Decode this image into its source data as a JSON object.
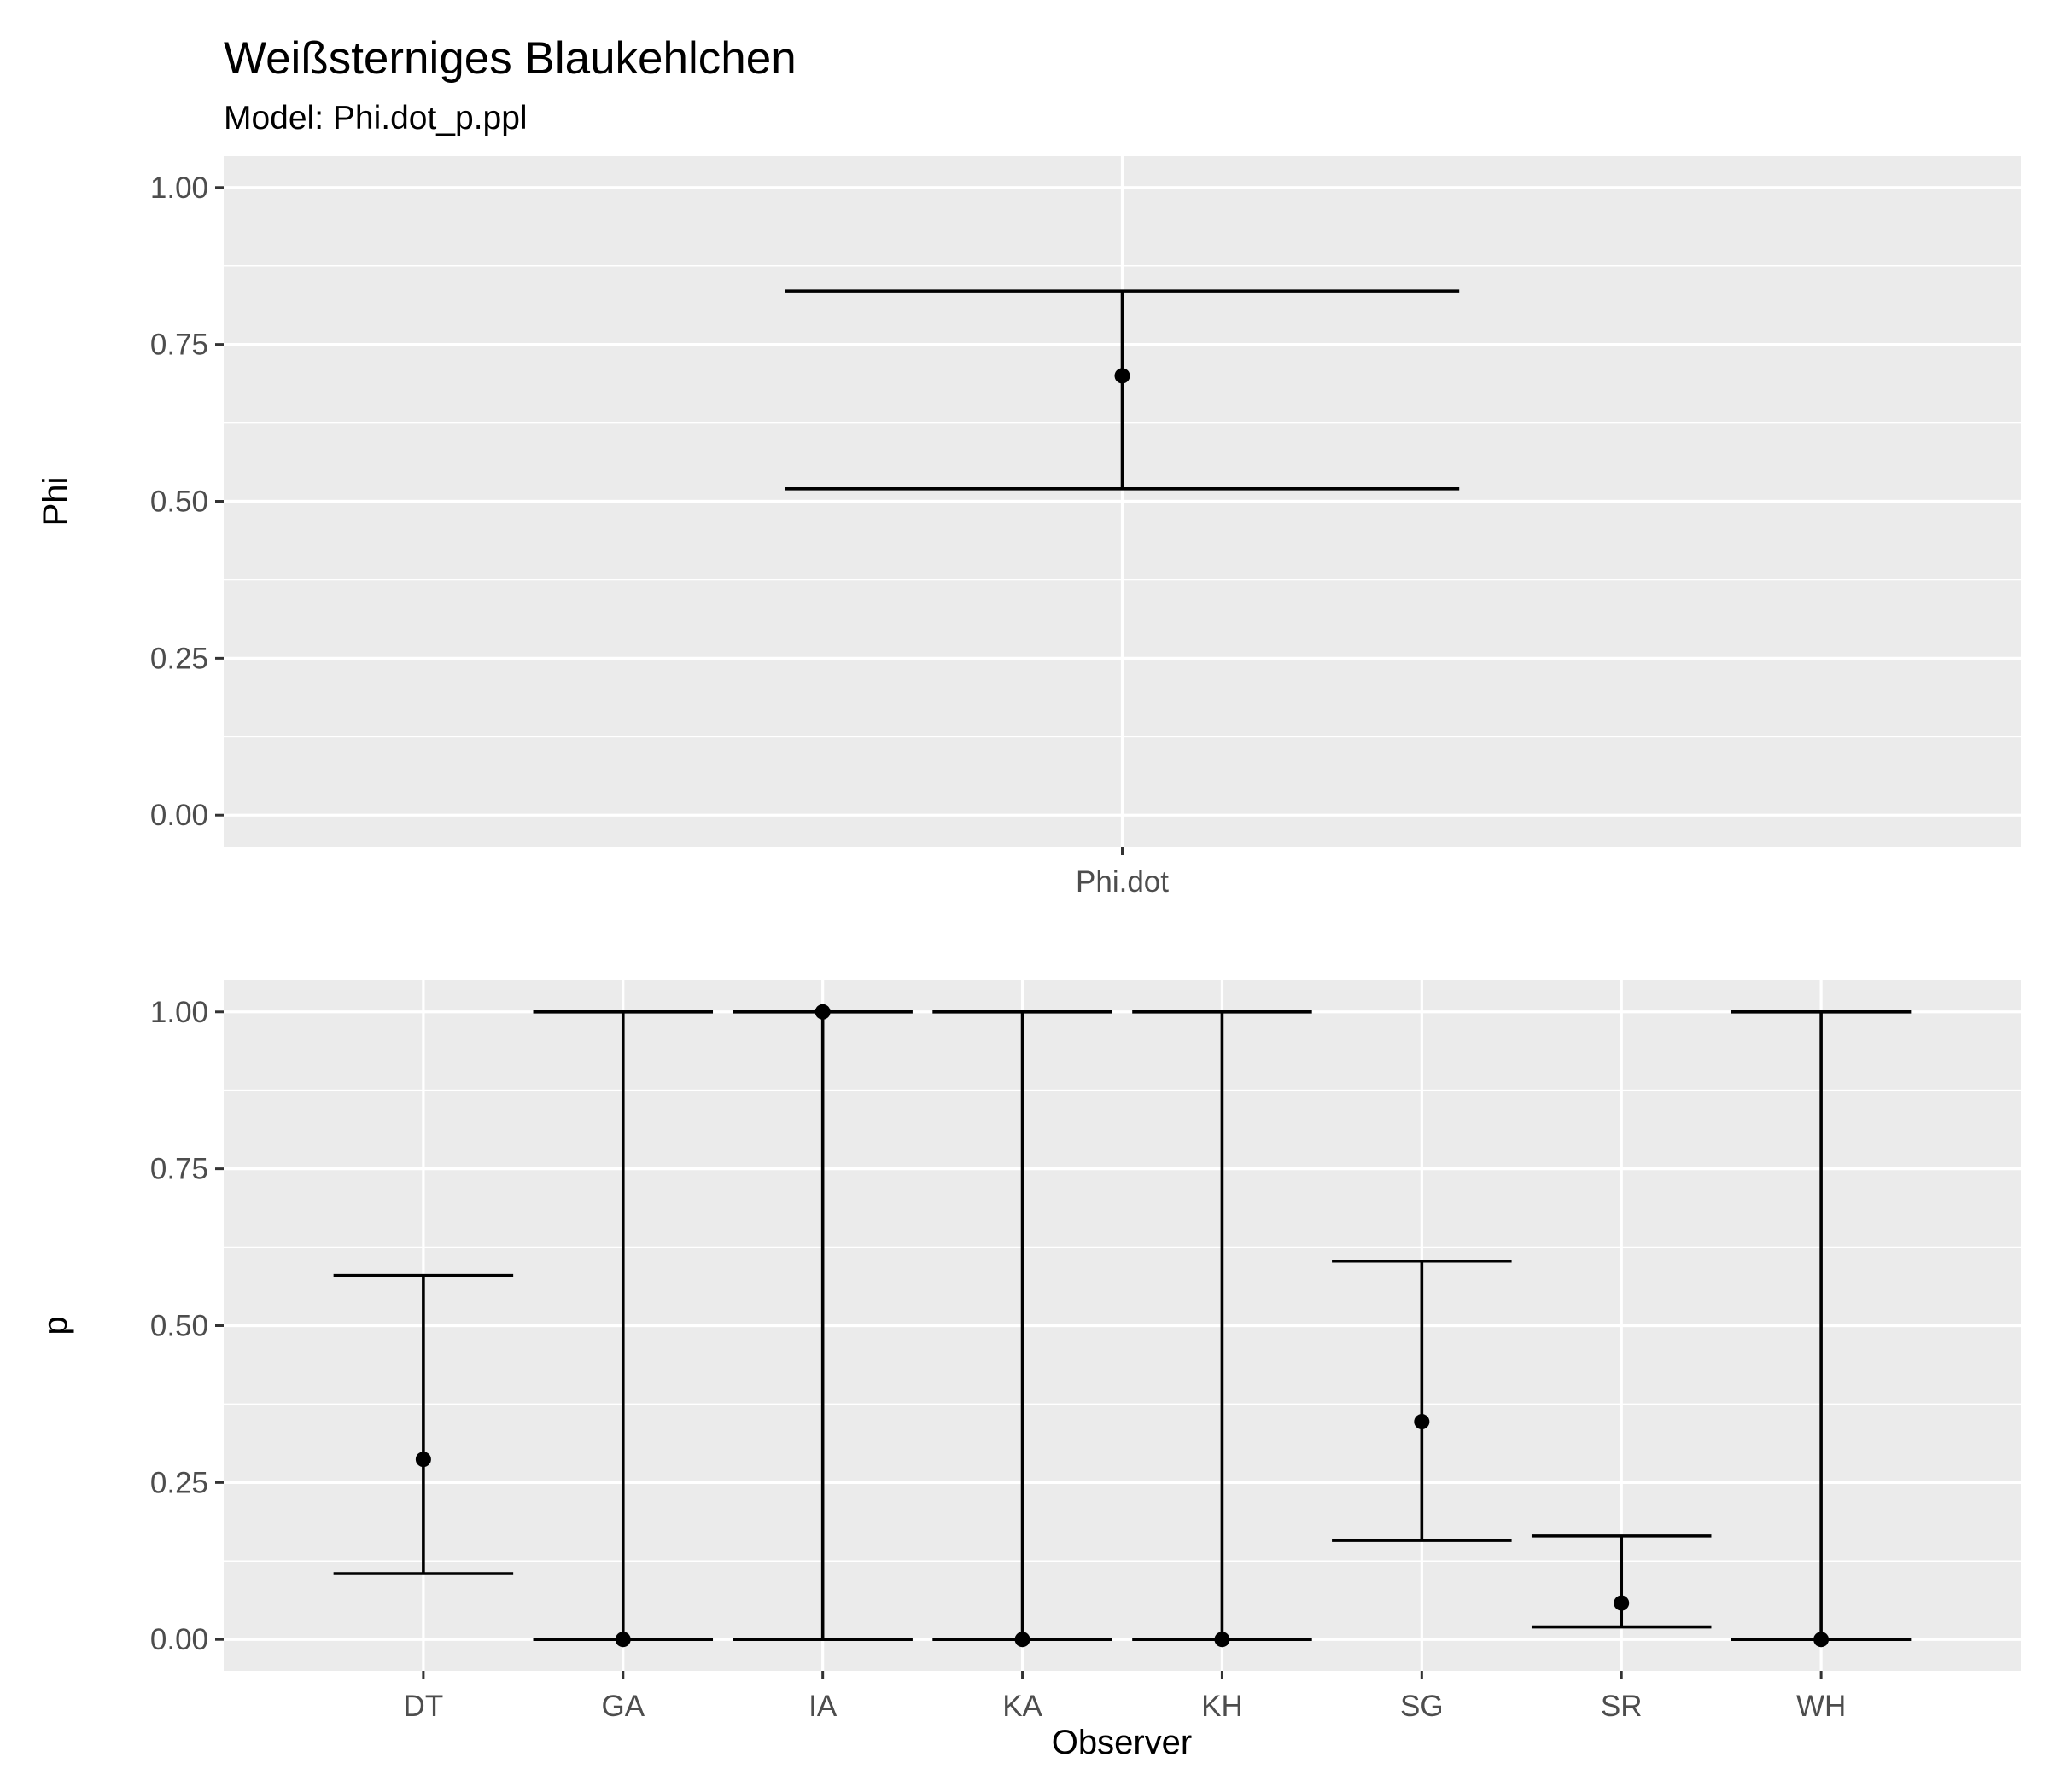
{
  "chart_data": {
    "title": "Weißsterniges Blaukehlchen",
    "subtitle": "Model: Phi.dot_p.ppl",
    "panels": [
      {
        "type": "errorbar",
        "ylabel": "Phi",
        "xlabel": "",
        "ylim": [
          -0.05,
          1.05
        ],
        "yticks": [
          "0.00",
          "0.25",
          "0.50",
          "0.75",
          "1.00"
        ],
        "ytick_values": [
          0,
          0.25,
          0.5,
          0.75,
          1
        ],
        "grid": true,
        "categories": [
          "Phi.dot"
        ],
        "estimate": [
          0.7
        ],
        "lower": [
          0.52
        ],
        "upper": [
          0.835
        ],
        "cap_width": 0.75
      },
      {
        "type": "errorbar",
        "ylabel": "p",
        "xlabel": "Observer",
        "ylim": [
          -0.05,
          1.05
        ],
        "yticks": [
          "0.00",
          "0.25",
          "0.50",
          "0.75",
          "1.00"
        ],
        "ytick_values": [
          0,
          0.25,
          0.5,
          0.75,
          1
        ],
        "grid": true,
        "categories": [
          "DT",
          "GA",
          "IA",
          "KA",
          "KH",
          "SG",
          "SR",
          "WH"
        ],
        "estimate": [
          0.287,
          0.0,
          1.0,
          0.0,
          0.0,
          0.347,
          0.058,
          0.0
        ],
        "lower": [
          0.105,
          0.0,
          0.0,
          0.0,
          0.0,
          0.158,
          0.02,
          0.0
        ],
        "upper": [
          0.58,
          1.0,
          1.0,
          1.0,
          1.0,
          0.603,
          0.165,
          1.0
        ],
        "cap_width": 0.9
      }
    ]
  }
}
